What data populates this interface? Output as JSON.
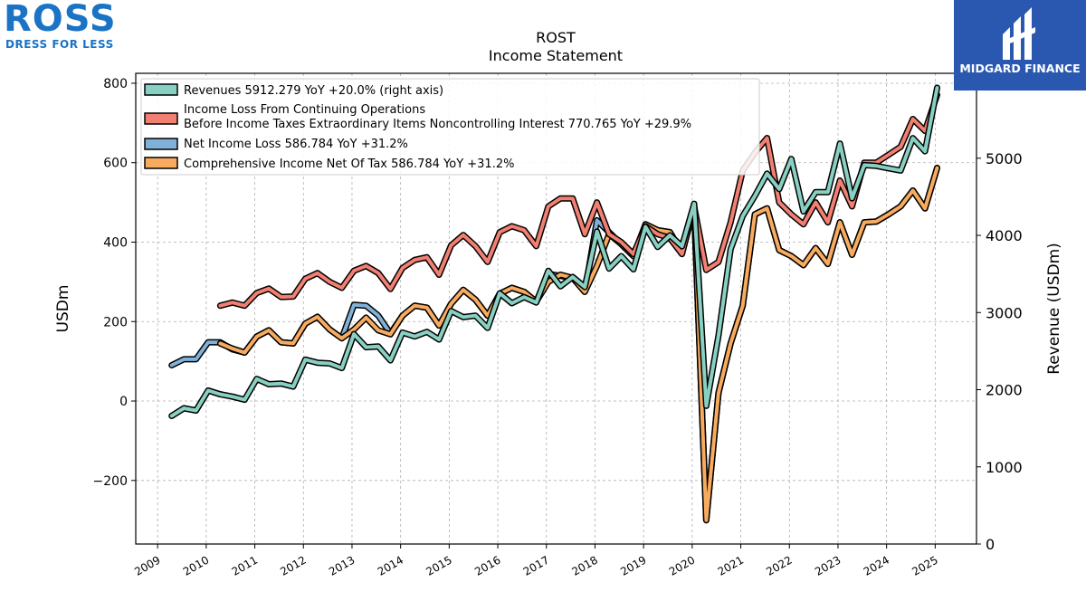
{
  "chart_data": {
    "type": "line",
    "title": "ROST",
    "subtitle": "Income Statement",
    "ylabel": "USDm",
    "ylabel_right": "Revenue (USDm)",
    "xlabel": "",
    "ylim": [
      -360,
      825
    ],
    "ylim_right": [
      0,
      6100
    ],
    "yticks": [
      -200,
      0,
      200,
      400,
      600,
      800
    ],
    "yticks_right": [
      0,
      1000,
      2000,
      3000,
      4000,
      5000
    ],
    "xlim": [
      2008.55,
      2025.85
    ],
    "xticks": [
      "2009",
      "2010",
      "2011",
      "2012",
      "2013",
      "2014",
      "2015",
      "2016",
      "2017",
      "2018",
      "2019",
      "2020",
      "2021",
      "2022",
      "2023",
      "2024",
      "2025"
    ],
    "grid": true,
    "legend_position": "upper-left",
    "series": [
      {
        "name": "Revenues  5912.279 YoY +20.0% (right axis)",
        "axis": "right",
        "color": "#88d0c2",
        "x": [
          2009.29,
          2009.54,
          2009.79,
          2010.04,
          2010.29,
          2010.54,
          2010.79,
          2011.04,
          2011.29,
          2011.54,
          2011.79,
          2012.04,
          2012.29,
          2012.54,
          2012.79,
          2013.04,
          2013.29,
          2013.54,
          2013.79,
          2014.04,
          2014.29,
          2014.54,
          2014.79,
          2015.04,
          2015.29,
          2015.54,
          2015.79,
          2016.04,
          2016.29,
          2016.54,
          2016.79,
          2017.04,
          2017.29,
          2017.54,
          2017.79,
          2018.04,
          2018.29,
          2018.54,
          2018.79,
          2019.04,
          2019.29,
          2019.54,
          2019.79,
          2020.04,
          2020.29,
          2020.54,
          2020.79,
          2021.04,
          2021.29,
          2021.54,
          2021.79,
          2022.04,
          2022.29,
          2022.54,
          2022.79,
          2023.04,
          2023.29,
          2023.54,
          2023.79,
          2024.04,
          2024.29,
          2024.54,
          2024.79,
          2025.04
        ],
        "values": [
          1660,
          1760,
          1730,
          1990,
          1940,
          1910,
          1870,
          2140,
          2070,
          2080,
          2040,
          2390,
          2350,
          2340,
          2280,
          2720,
          2550,
          2560,
          2380,
          2740,
          2690,
          2750,
          2650,
          3020,
          2940,
          2960,
          2800,
          3250,
          3120,
          3200,
          3130,
          3540,
          3340,
          3460,
          3330,
          4050,
          3570,
          3730,
          3560,
          4110,
          3850,
          4000,
          3860,
          4410,
          1790,
          2700,
          3820,
          4250,
          4510,
          4800,
          4600,
          4990,
          4310,
          4560,
          4560,
          5190,
          4480,
          4910,
          4900,
          4870,
          4840,
          5260,
          5090,
          5912.279
        ]
      },
      {
        "name": "Income Loss From Continuing Operations\nBefore Income Taxes Extraordinary Items Noncontrolling Interest  770.765 YoY +29.9%",
        "axis": "left",
        "color": "#f28072",
        "x": [
          2010.29,
          2010.54,
          2010.79,
          2011.04,
          2011.29,
          2011.54,
          2011.79,
          2012.04,
          2012.29,
          2012.54,
          2012.79,
          2013.04,
          2013.29,
          2013.54,
          2013.79,
          2014.04,
          2014.29,
          2014.54,
          2014.79,
          2015.04,
          2015.29,
          2015.54,
          2015.79,
          2016.04,
          2016.29,
          2016.54,
          2016.79,
          2017.04,
          2017.29,
          2017.54,
          2017.79,
          2018.04,
          2018.29,
          2018.54,
          2018.79,
          2019.04,
          2019.29,
          2019.54,
          2019.79,
          2020.04,
          2020.29,
          2020.54,
          2020.79,
          2021.04,
          2021.29,
          2021.54,
          2021.79,
          2022.04,
          2022.29,
          2022.54,
          2022.79,
          2023.04,
          2023.29,
          2023.54,
          2023.79,
          2024.04,
          2024.29,
          2024.54,
          2024.79,
          2025.04
        ],
        "values": [
          240,
          248,
          240,
          272,
          283,
          262,
          263,
          308,
          322,
          300,
          285,
          328,
          340,
          322,
          282,
          335,
          355,
          362,
          318,
          392,
          418,
          390,
          350,
          425,
          440,
          430,
          390,
          490,
          510,
          510,
          420,
          500,
          420,
          400,
          370,
          440,
          420,
          410,
          370,
          490,
          330,
          350,
          450,
          580,
          625,
          662,
          500,
          470,
          445,
          500,
          450,
          555,
          490,
          600,
          600,
          620,
          640,
          710,
          680,
          770.765
        ]
      },
      {
        "name": "Net Income Loss  586.784 YoY +31.2%",
        "axis": "left",
        "color": "#80b1d8",
        "x": [
          2009.29,
          2009.54,
          2009.79,
          2010.04,
          2010.29,
          2010.54,
          2010.79,
          2011.04,
          2011.29,
          2011.54,
          2011.79,
          2012.04,
          2012.29,
          2012.54,
          2012.79,
          2013.04,
          2013.29,
          2013.54,
          2013.79,
          2014.04,
          2014.29,
          2014.54,
          2014.79,
          2015.04,
          2015.29,
          2015.54,
          2015.79,
          2016.04,
          2016.29,
          2016.54,
          2016.79,
          2017.04,
          2017.29,
          2017.54,
          2017.79,
          2018.04,
          2018.29,
          2018.54,
          2018.79,
          2019.04,
          2019.29,
          2019.54,
          2019.79,
          2020.04,
          2020.29,
          2020.54,
          2020.79,
          2021.04,
          2021.29,
          2021.54,
          2021.79,
          2022.04,
          2022.29,
          2022.54,
          2022.79,
          2023.04,
          2023.29,
          2023.54,
          2023.79,
          2024.04,
          2024.29,
          2024.54,
          2024.79,
          2025.04
        ],
        "values": [
          90,
          105,
          105,
          148,
          148,
          130,
          122,
          162,
          178,
          148,
          145,
          195,
          212,
          180,
          158,
          242,
          240,
          215,
          170,
          215,
          240,
          235,
          190,
          245,
          280,
          255,
          215,
          270,
          285,
          275,
          250,
          320,
          315,
          310,
          275,
          455,
          425,
          395,
          365,
          445,
          430,
          425,
          375,
          485,
          -300,
          20,
          145,
          240,
          470,
          485,
          380,
          365,
          342,
          385,
          345,
          450,
          368,
          450,
          452,
          470,
          490,
          530,
          485,
          586.784
        ]
      },
      {
        "name": "Comprehensive Income Net Of Tax  586.784 YoY +31.2%",
        "axis": "left",
        "color": "#f8ab5f",
        "x": [
          2010.29,
          2010.54,
          2010.79,
          2011.04,
          2011.29,
          2011.54,
          2011.79,
          2012.04,
          2012.29,
          2012.54,
          2012.79,
          2013.04,
          2013.29,
          2013.54,
          2013.79,
          2014.04,
          2014.29,
          2014.54,
          2014.79,
          2015.04,
          2015.29,
          2015.54,
          2015.79,
          2016.04,
          2016.29,
          2016.54,
          2016.79,
          2017.04,
          2017.29,
          2017.54,
          2017.79,
          2018.04,
          2018.29,
          2018.54,
          2018.79,
          2019.04,
          2019.29,
          2019.54,
          2019.79,
          2020.04,
          2020.29,
          2020.54,
          2020.79,
          2021.04,
          2021.29,
          2021.54,
          2021.79,
          2022.04,
          2022.29,
          2022.54,
          2022.79,
          2023.04,
          2023.29,
          2023.54,
          2023.79,
          2024.04,
          2024.29,
          2024.54,
          2024.79,
          2025.04
        ],
        "values": [
          145,
          132,
          122,
          162,
          178,
          148,
          145,
          195,
          212,
          180,
          158,
          180,
          210,
          178,
          168,
          215,
          240,
          235,
          190,
          245,
          280,
          255,
          215,
          270,
          285,
          275,
          250,
          300,
          318,
          310,
          275,
          340,
          420,
          395,
          365,
          445,
          430,
          425,
          375,
          485,
          -300,
          20,
          145,
          240,
          470,
          485,
          380,
          365,
          342,
          385,
          345,
          450,
          368,
          450,
          452,
          470,
          490,
          530,
          485,
          586.784
        ]
      }
    ]
  },
  "branding": {
    "ross_word": "ROSS",
    "ross_tagline": "DRESS FOR LESS",
    "midgard_text": "MIDGARD FINANCE"
  }
}
